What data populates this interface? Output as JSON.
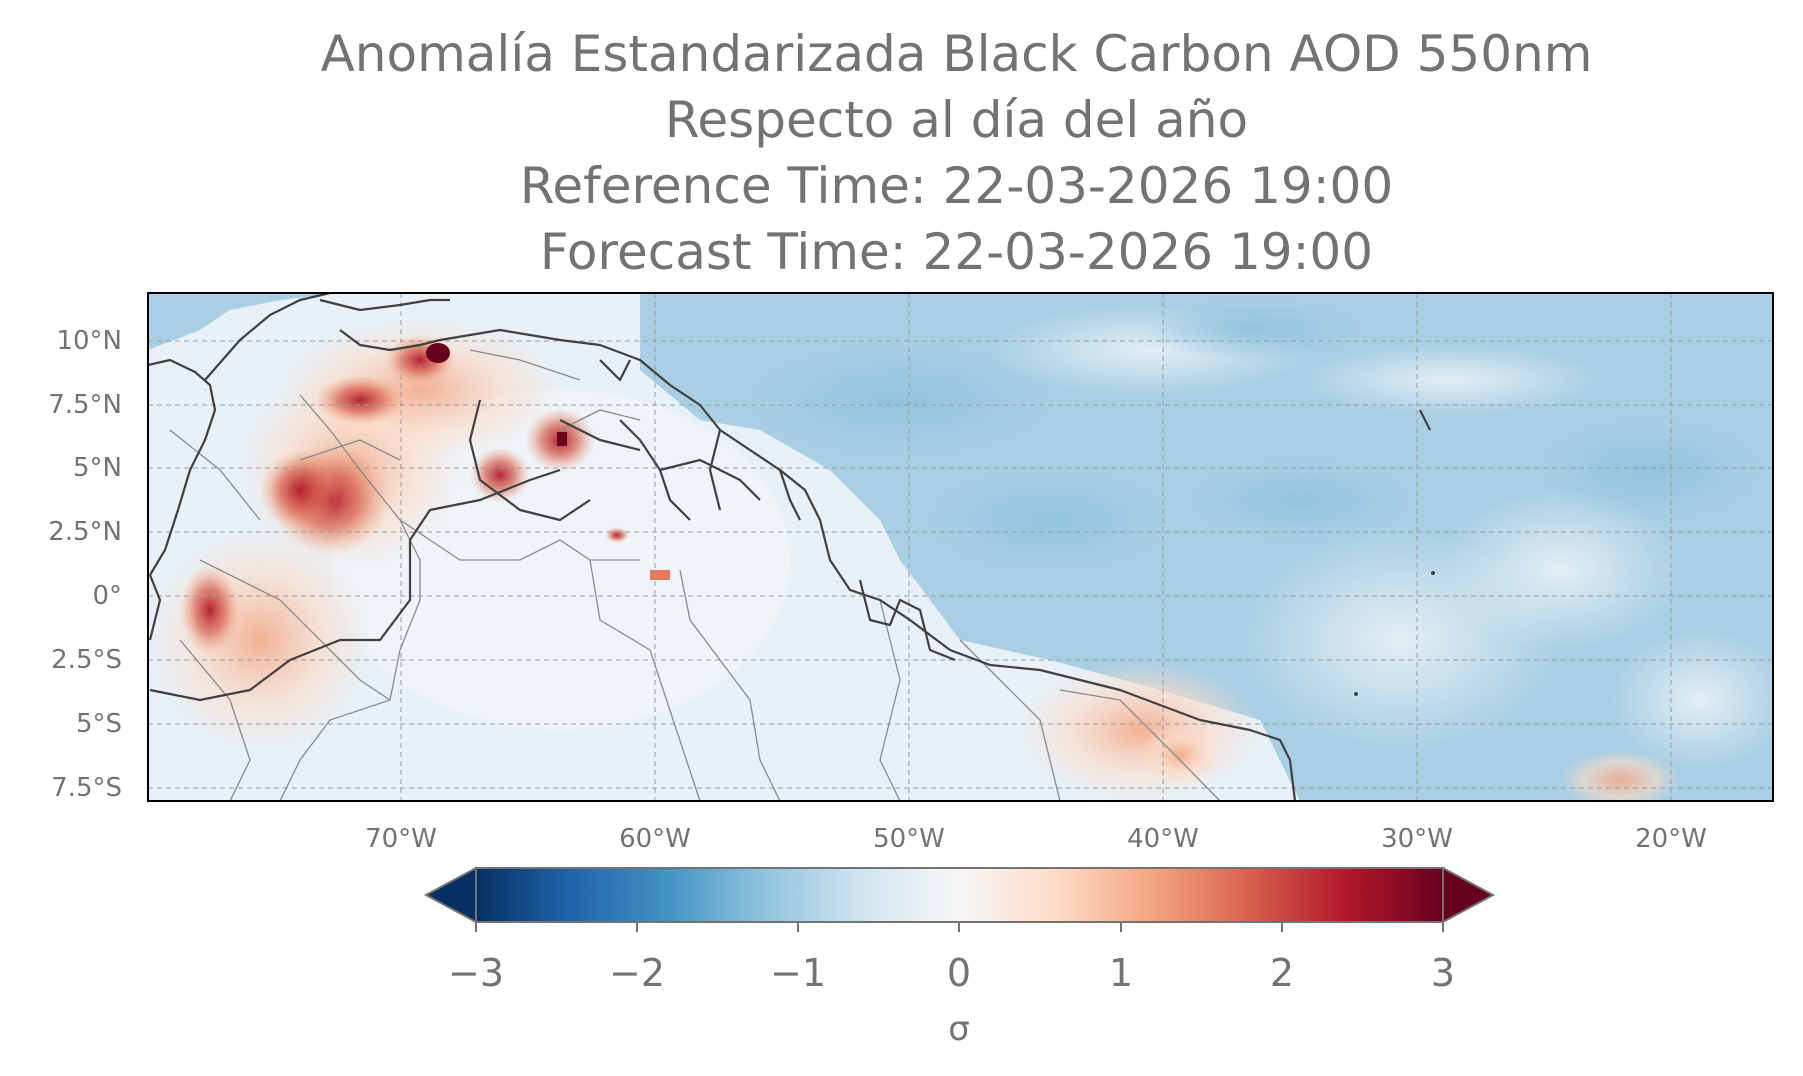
{
  "title": {
    "line1": "Anomalía Estandarizada Black Carbon AOD 550nm",
    "line2": "Respecto al día del año",
    "line3": "Reference Time: 22-03-2026 19:00",
    "line4": "Forecast Time: 22-03-2026 19:00"
  },
  "map": {
    "lat_labels": [
      "10°N",
      "7.5°N",
      "5°N",
      "2.5°N",
      "0°",
      "2.5°S",
      "5°S",
      "7.5°S"
    ],
    "lat_values": [
      10,
      7.5,
      5,
      2.5,
      0,
      -2.5,
      -5,
      -7.5
    ],
    "lon_labels": [
      "70°W",
      "60°W",
      "50°W",
      "40°W",
      "30°W",
      "20°W"
    ],
    "lon_values": [
      -70,
      -60,
      -50,
      -40,
      -30,
      -20
    ],
    "extent": {
      "lon_min": -80,
      "lon_max": -16,
      "lat_min": -8,
      "lat_max": 12
    },
    "colors": {
      "ocean_base": "#a9cfe4",
      "land_base": "#e8f1f7",
      "coast": "#404040",
      "border": "#8a8a8a",
      "grid": "#9a9a9a"
    }
  },
  "colorbar": {
    "ticks": [
      "−3",
      "−2",
      "−1",
      "0",
      "1",
      "2",
      "3"
    ],
    "tick_values": [
      -3,
      -2,
      -1,
      0,
      1,
      2,
      3
    ],
    "label": "σ",
    "colormap": "RdBu_r",
    "stops": [
      "#053061",
      "#2166ac",
      "#4393c3",
      "#92c5de",
      "#d1e5f0",
      "#f7f7f7",
      "#fddbc7",
      "#f4a582",
      "#d6604d",
      "#b2182b",
      "#67001f"
    ]
  }
}
